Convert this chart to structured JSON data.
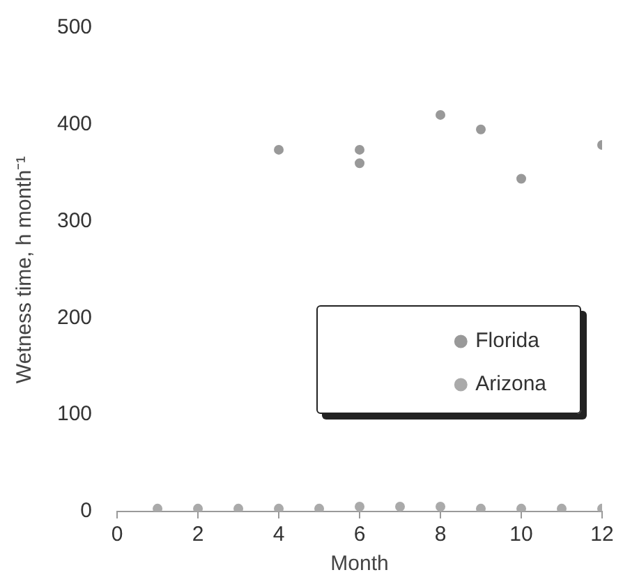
{
  "chart_data": {
    "type": "scatter",
    "xlabel": "Month",
    "ylabel": "Wetness time, h month⁻¹",
    "xlim": [
      0,
      12
    ],
    "xticks": [
      0,
      2,
      4,
      6,
      8,
      10,
      12
    ],
    "ylim": [
      0,
      500
    ],
    "yticks": [
      0,
      100,
      200,
      300,
      400,
      500
    ],
    "grid": false,
    "legend": "bottom right",
    "marker": "circle",
    "series": [
      {
        "name": "Florida",
        "color": "#999999",
        "x": [
          4,
          6,
          6,
          8,
          9,
          10,
          12
        ],
        "values": [
          374,
          374,
          360,
          410,
          395,
          344,
          379
        ]
      },
      {
        "name": "Arizona",
        "color": "#aaaaaa",
        "x": [
          1,
          2,
          3,
          4,
          5,
          6,
          7,
          8,
          9,
          10,
          11,
          12
        ],
        "values": [
          3,
          3,
          3,
          3,
          3,
          5,
          5,
          5,
          3,
          3,
          3,
          3
        ]
      }
    ]
  }
}
